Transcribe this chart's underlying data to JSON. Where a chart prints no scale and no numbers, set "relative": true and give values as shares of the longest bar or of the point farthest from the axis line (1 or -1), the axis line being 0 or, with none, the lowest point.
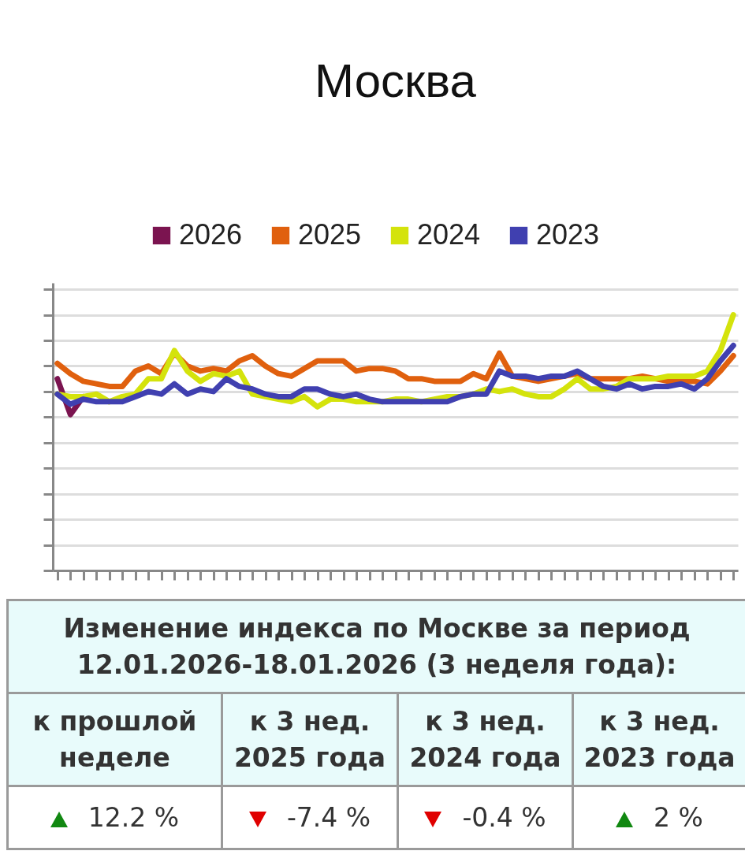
{
  "chart_data": [
    {
      "type": "line",
      "title": "Москва",
      "relative": true,
      "grid": "y",
      "legend": "top",
      "categories": [
        null,
        null,
        null,
        null,
        null,
        null,
        null,
        null,
        null,
        null,
        null,
        null,
        null,
        null,
        null,
        null,
        null,
        null,
        null,
        null,
        null,
        null,
        null,
        null,
        null,
        null,
        null,
        null,
        null,
        null,
        null,
        null,
        null,
        null,
        null,
        null,
        null,
        null,
        null,
        null,
        null,
        null,
        null,
        null,
        null,
        null,
        null,
        null,
        null,
        null,
        null,
        null,
        null
      ],
      "series": [
        {
          "name": "2026",
          "color": "#7b1450",
          "values": [
            0.75,
            0.61,
            0.68,
            null,
            null,
            null,
            null,
            null,
            null,
            null,
            null,
            null,
            null,
            null,
            null,
            null,
            null,
            null,
            null,
            null,
            null,
            null,
            null,
            null,
            null,
            null,
            null,
            null,
            null,
            null,
            null,
            null,
            null,
            null,
            null,
            null,
            null,
            null,
            null,
            null,
            null,
            null,
            null,
            null,
            null,
            null,
            null,
            null,
            null,
            null,
            null,
            null,
            null
          ]
        },
        {
          "name": "2025",
          "color": "#e0600e",
          "values": [
            0.81,
            0.77,
            0.74,
            0.73,
            0.72,
            0.72,
            0.78,
            0.8,
            0.77,
            0.85,
            0.8,
            0.78,
            0.79,
            0.78,
            0.82,
            0.84,
            0.8,
            0.77,
            0.76,
            0.79,
            0.82,
            0.82,
            0.82,
            0.78,
            0.79,
            0.79,
            0.78,
            0.75,
            0.75,
            0.74,
            0.74,
            0.74,
            0.77,
            0.75,
            0.85,
            0.76,
            0.75,
            0.74,
            0.75,
            0.76,
            0.77,
            0.75,
            0.75,
            0.75,
            0.75,
            0.76,
            0.75,
            0.74,
            0.74,
            0.74,
            0.73,
            0.78,
            0.84
          ]
        },
        {
          "name": "2024",
          "color": "#d4e30c",
          "values": [
            0.69,
            0.68,
            0.68,
            0.69,
            0.66,
            0.68,
            0.69,
            0.75,
            0.75,
            0.86,
            0.78,
            0.74,
            0.77,
            0.76,
            0.78,
            0.69,
            0.68,
            0.67,
            0.66,
            0.68,
            0.64,
            0.67,
            0.67,
            0.66,
            0.66,
            0.66,
            0.67,
            0.67,
            0.66,
            0.67,
            0.68,
            0.68,
            0.69,
            0.71,
            0.7,
            0.71,
            0.69,
            0.68,
            0.68,
            0.71,
            0.75,
            0.71,
            0.71,
            0.72,
            0.75,
            0.75,
            0.75,
            0.76,
            0.76,
            0.76,
            0.78,
            0.86,
            1
          ]
        },
        {
          "name": "2023",
          "color": "#4040b0",
          "values": [
            0.69,
            0.65,
            0.67,
            0.66,
            0.66,
            0.66,
            0.68,
            0.7,
            0.69,
            0.73,
            0.69,
            0.71,
            0.7,
            0.75,
            0.72,
            0.71,
            0.69,
            0.68,
            0.68,
            0.71,
            0.71,
            0.69,
            0.68,
            0.69,
            0.67,
            0.66,
            0.66,
            0.66,
            0.66,
            0.66,
            0.66,
            0.68,
            0.69,
            0.69,
            0.78,
            0.76,
            0.76,
            0.75,
            0.76,
            0.76,
            0.78,
            0.75,
            0.72,
            0.71,
            0.73,
            0.71,
            0.72,
            0.72,
            0.73,
            0.71,
            0.75,
            0.82,
            0.88
          ]
        }
      ]
    },
    {
      "type": "other",
      "title": "Изменение индекса по Москве за период 12.01.2026-18.01.2026 (3 неделя года):",
      "annotations": [
        "к прошлой неделе",
        "к 3 нед. 2025 года",
        "к 3 нед. 2024 года",
        "к 3 нед. 2023 года",
        "12.2 %",
        "-7.4 %",
        "-0.4 %",
        "2 %"
      ]
    }
  ]
}
